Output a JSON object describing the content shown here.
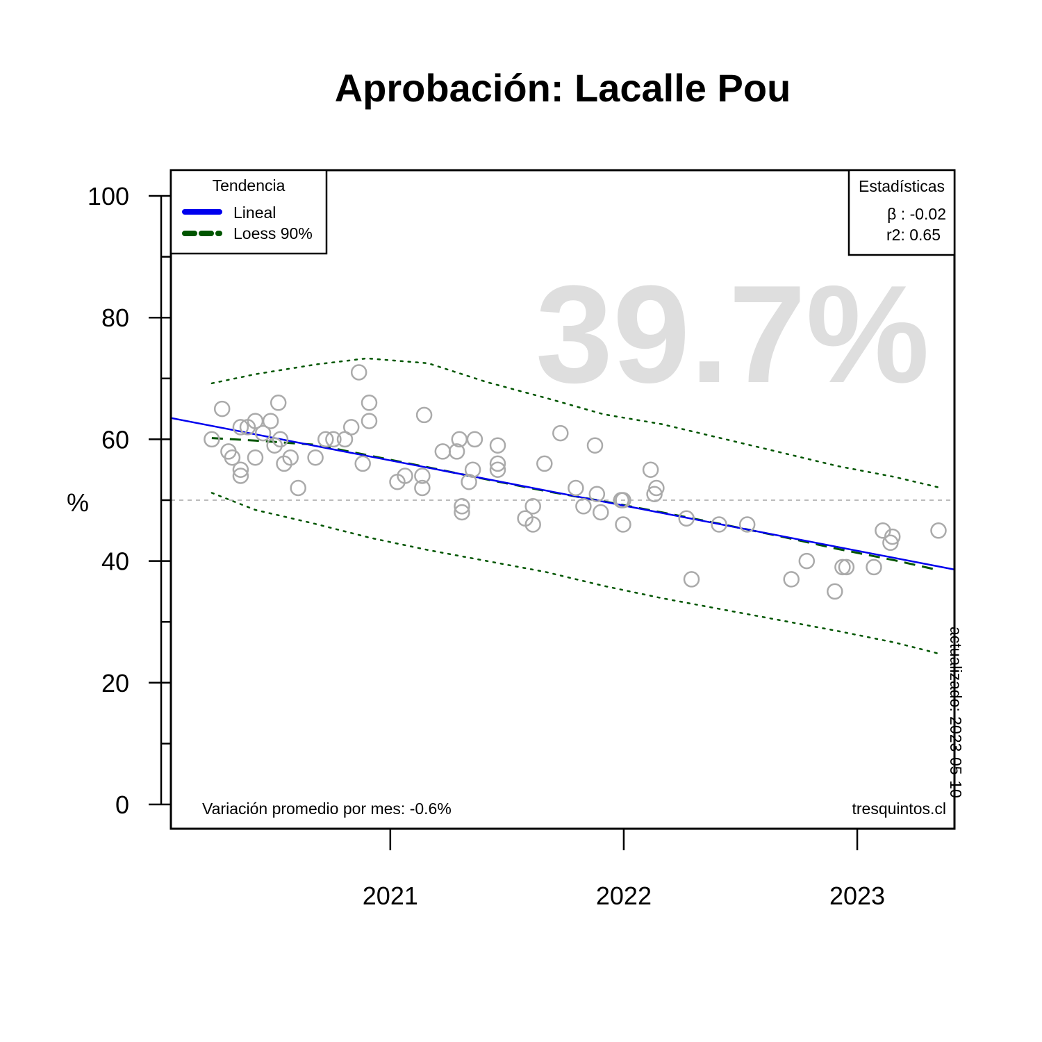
{
  "chart_data": {
    "type": "scatter",
    "title": "Aprobación: Lacalle Pou",
    "ylabel": "%",
    "ylim": [
      0,
      100
    ],
    "y_ticks": [
      0,
      20,
      40,
      60,
      80,
      100
    ],
    "x_ticks": [
      "2021-01-01",
      "2022-01-01",
      "2023-01-01"
    ],
    "x_tick_labels": [
      "2021",
      "2022",
      "2023"
    ],
    "xlim": [
      "2020-01-24",
      "2023-06-02"
    ],
    "reference_line": 50,
    "highlight_value": "39.7%",
    "subtitle": "Variación promedio por mes: -0.6%",
    "source": "tresquintos.cl",
    "updated": "actualizado: 2023-05-10",
    "legend": {
      "title": "Tendencia",
      "items": [
        {
          "label": "Lineal",
          "color": "#0000ee",
          "style": "solid"
        },
        {
          "label": "Loess 90%",
          "color": "#005500",
          "style": "dashed"
        }
      ]
    },
    "stats": {
      "title": "Estadísticas",
      "beta": "β : -0.02",
      "r2": "r2: 0.65"
    },
    "colors": {
      "points": "#aaaaaa",
      "linear": "#0000ee",
      "loess": "#005500",
      "reference": "#bbbbbb",
      "highlight": "#dedede"
    },
    "points": [
      [
        "2020-03-28",
        60
      ],
      [
        "2020-04-13",
        65
      ],
      [
        "2020-04-23",
        58
      ],
      [
        "2020-04-29",
        57
      ],
      [
        "2020-05-12",
        55
      ],
      [
        "2020-05-12",
        54
      ],
      [
        "2020-05-12",
        62
      ],
      [
        "2020-05-23",
        62
      ],
      [
        "2020-06-04",
        63
      ],
      [
        "2020-06-04",
        57
      ],
      [
        "2020-06-16",
        61
      ],
      [
        "2020-06-28",
        63
      ],
      [
        "2020-07-04",
        59
      ],
      [
        "2020-07-10",
        66
      ],
      [
        "2020-07-13",
        60
      ],
      [
        "2020-07-19",
        56
      ],
      [
        "2020-07-29",
        57
      ],
      [
        "2020-08-10",
        52
      ],
      [
        "2020-09-06",
        57
      ],
      [
        "2020-09-22",
        60
      ],
      [
        "2020-10-04",
        60
      ],
      [
        "2020-10-22",
        60
      ],
      [
        "2020-11-01",
        62
      ],
      [
        "2020-11-13",
        71
      ],
      [
        "2020-11-19",
        56
      ],
      [
        "2020-11-29",
        66
      ],
      [
        "2020-11-29",
        63
      ],
      [
        "2021-01-12",
        53
      ],
      [
        "2021-01-24",
        54
      ],
      [
        "2021-02-20",
        54
      ],
      [
        "2021-02-20",
        52
      ],
      [
        "2021-02-23",
        64
      ],
      [
        "2021-03-24",
        58
      ],
      [
        "2021-04-15",
        58
      ],
      [
        "2021-04-19",
        60
      ],
      [
        "2021-04-23",
        49
      ],
      [
        "2021-04-23",
        48
      ],
      [
        "2021-05-04",
        53
      ],
      [
        "2021-05-10",
        55
      ],
      [
        "2021-05-13",
        60
      ],
      [
        "2021-06-18",
        59
      ],
      [
        "2021-06-18",
        56
      ],
      [
        "2021-06-18",
        55
      ],
      [
        "2021-07-31",
        47
      ],
      [
        "2021-08-12",
        49
      ],
      [
        "2021-08-12",
        46
      ],
      [
        "2021-08-30",
        56
      ],
      [
        "2021-09-24",
        61
      ],
      [
        "2021-10-18",
        52
      ],
      [
        "2021-10-30",
        49
      ],
      [
        "2021-11-17",
        59
      ],
      [
        "2021-11-20",
        51
      ],
      [
        "2021-11-26",
        48
      ],
      [
        "2021-12-28",
        50
      ],
      [
        "2021-12-31",
        50
      ],
      [
        "2021-12-31",
        46
      ],
      [
        "2022-02-12",
        55
      ],
      [
        "2022-02-18",
        51
      ],
      [
        "2022-02-21",
        52
      ],
      [
        "2022-04-09",
        47
      ],
      [
        "2022-04-17",
        37
      ],
      [
        "2022-05-30",
        46
      ],
      [
        "2022-07-13",
        46
      ],
      [
        "2022-09-20",
        37
      ],
      [
        "2022-10-14",
        40
      ],
      [
        "2022-11-27",
        35
      ],
      [
        "2022-12-09",
        39
      ],
      [
        "2022-12-15",
        39
      ],
      [
        "2023-01-27",
        39
      ],
      [
        "2023-02-10",
        45
      ],
      [
        "2023-02-22",
        43
      ],
      [
        "2023-02-25",
        44
      ],
      [
        "2023-05-08",
        45
      ]
    ],
    "linear_fit": [
      [
        "2020-01-24",
        63.5
      ],
      [
        "2023-06-02",
        38.6
      ]
    ],
    "loess_fit": [
      [
        "2020-03-28",
        60.2
      ],
      [
        "2020-06-04",
        59.8
      ],
      [
        "2020-09-06",
        59.1
      ],
      [
        "2020-12-01",
        57.3
      ],
      [
        "2021-03-01",
        55.4
      ],
      [
        "2021-06-01",
        53.4
      ],
      [
        "2021-09-01",
        51.5
      ],
      [
        "2021-12-01",
        49.8
      ],
      [
        "2022-03-01",
        48.0
      ],
      [
        "2022-06-01",
        46.1
      ],
      [
        "2022-09-01",
        44.1
      ],
      [
        "2022-12-01",
        42.0
      ],
      [
        "2023-03-01",
        40.1
      ],
      [
        "2023-05-08",
        38.5
      ]
    ],
    "loess_upper": [
      [
        "2020-03-28",
        69.2
      ],
      [
        "2020-06-04",
        70.7
      ],
      [
        "2020-09-06",
        72.3
      ],
      [
        "2020-11-25",
        73.3
      ],
      [
        "2021-03-01",
        72.5
      ],
      [
        "2021-06-01",
        69.4
      ],
      [
        "2021-09-01",
        66.8
      ],
      [
        "2021-12-01",
        64.1
      ],
      [
        "2022-03-01",
        62.5
      ],
      [
        "2022-06-01",
        60.2
      ],
      [
        "2022-09-01",
        57.9
      ],
      [
        "2022-12-01",
        55.6
      ],
      [
        "2023-03-01",
        53.8
      ],
      [
        "2023-05-08",
        52.1
      ]
    ],
    "loess_lower": [
      [
        "2020-03-28",
        51.2
      ],
      [
        "2020-06-04",
        48.4
      ],
      [
        "2020-09-06",
        46.1
      ],
      [
        "2020-12-01",
        43.8
      ],
      [
        "2021-03-01",
        41.8
      ],
      [
        "2021-06-01",
        40.0
      ],
      [
        "2021-09-01",
        38.2
      ],
      [
        "2021-12-01",
        35.9
      ],
      [
        "2022-03-01",
        33.9
      ],
      [
        "2022-06-01",
        32.1
      ],
      [
        "2022-09-01",
        30.3
      ],
      [
        "2022-12-01",
        28.5
      ],
      [
        "2023-03-01",
        26.6
      ],
      [
        "2023-05-08",
        24.8
      ]
    ]
  }
}
